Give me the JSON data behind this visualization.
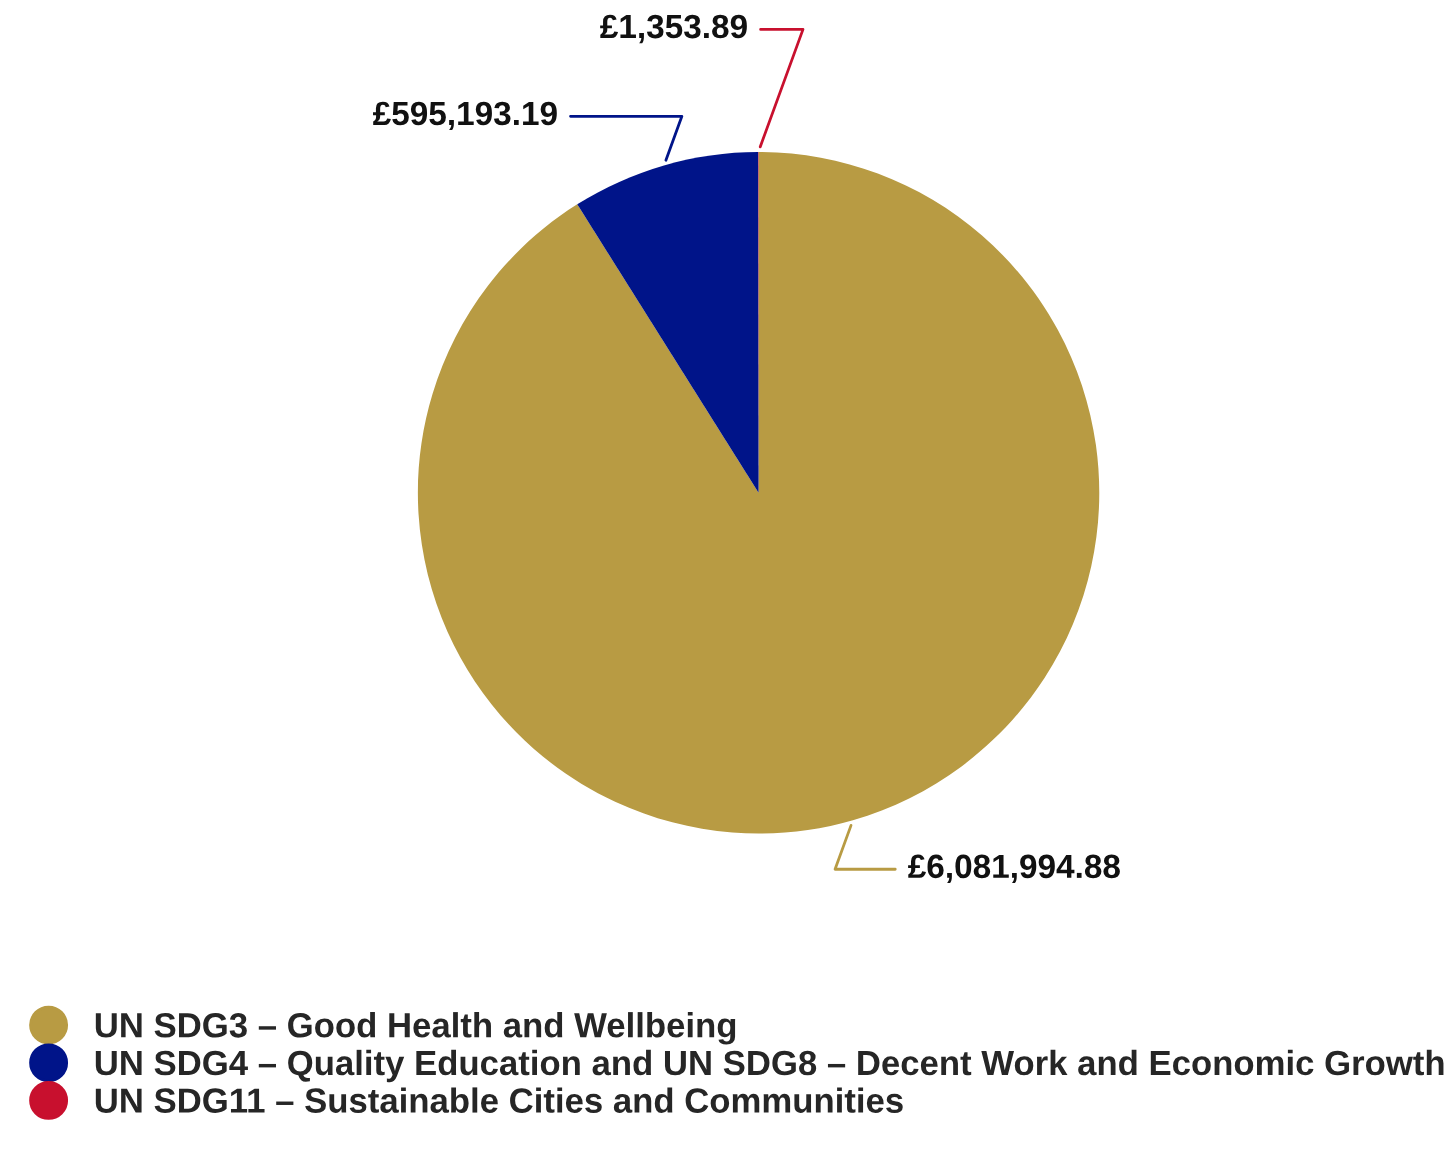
{
  "chart_data": {
    "type": "pie",
    "categories": [
      "UN SDG3 – Good Health and Wellbeing",
      "UN SDG4 – Quality Education and UN SDG8 – Decent Work and Economic Growth",
      "UN SDG11 – Sustainable Cities and Communities"
    ],
    "values": [
      6081994.88,
      595193.19,
      1353.89
    ],
    "colors": [
      "#b89b43",
      "#001489",
      "#c8102e"
    ],
    "value_labels": [
      "£6,081,994.88",
      "£595,193.19",
      "£1,353.89"
    ],
    "legend": "bottom"
  }
}
